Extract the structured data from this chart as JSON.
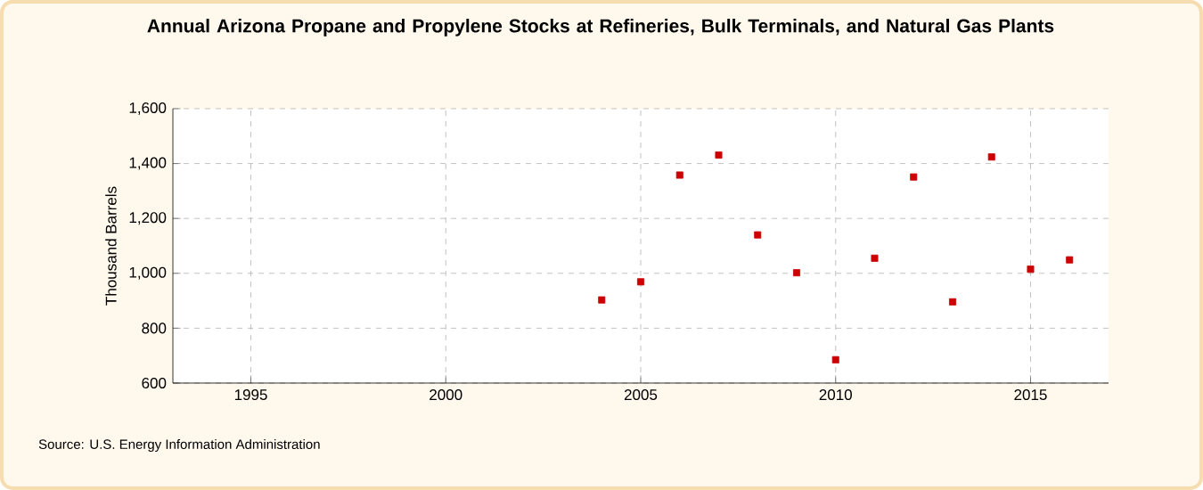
{
  "chart_data": {
    "type": "scatter",
    "title": "Annual Arizona Propane and Propylene Stocks at Refineries, Bulk Terminals, and Natural Gas Plants",
    "ylabel": "Thousand Barrels",
    "x": [
      2004,
      2005,
      2006,
      2007,
      2008,
      2009,
      2010,
      2011,
      2012,
      2013,
      2014,
      2015,
      2016
    ],
    "values": [
      903,
      969,
      1358,
      1431,
      1140,
      1002,
      685,
      1055,
      1351,
      896,
      1424,
      1015,
      1049
    ],
    "color": "#cc0000",
    "marker": "square",
    "xlim": [
      1993,
      2017
    ],
    "xticks": [
      1995,
      2000,
      2005,
      2010,
      2015
    ],
    "ylim": [
      600,
      1600
    ],
    "yticks": [
      {
        "value": 600,
        "label": "600"
      },
      {
        "value": 800,
        "label": "800"
      },
      {
        "value": 1000,
        "label": "1,000"
      },
      {
        "value": 1200,
        "label": "1,200"
      },
      {
        "value": 1400,
        "label": "1,400"
      },
      {
        "value": 1600,
        "label": "1,600"
      }
    ],
    "grid": true,
    "annotations": [
      "Source: U.S. Energy Information Administration"
    ]
  }
}
